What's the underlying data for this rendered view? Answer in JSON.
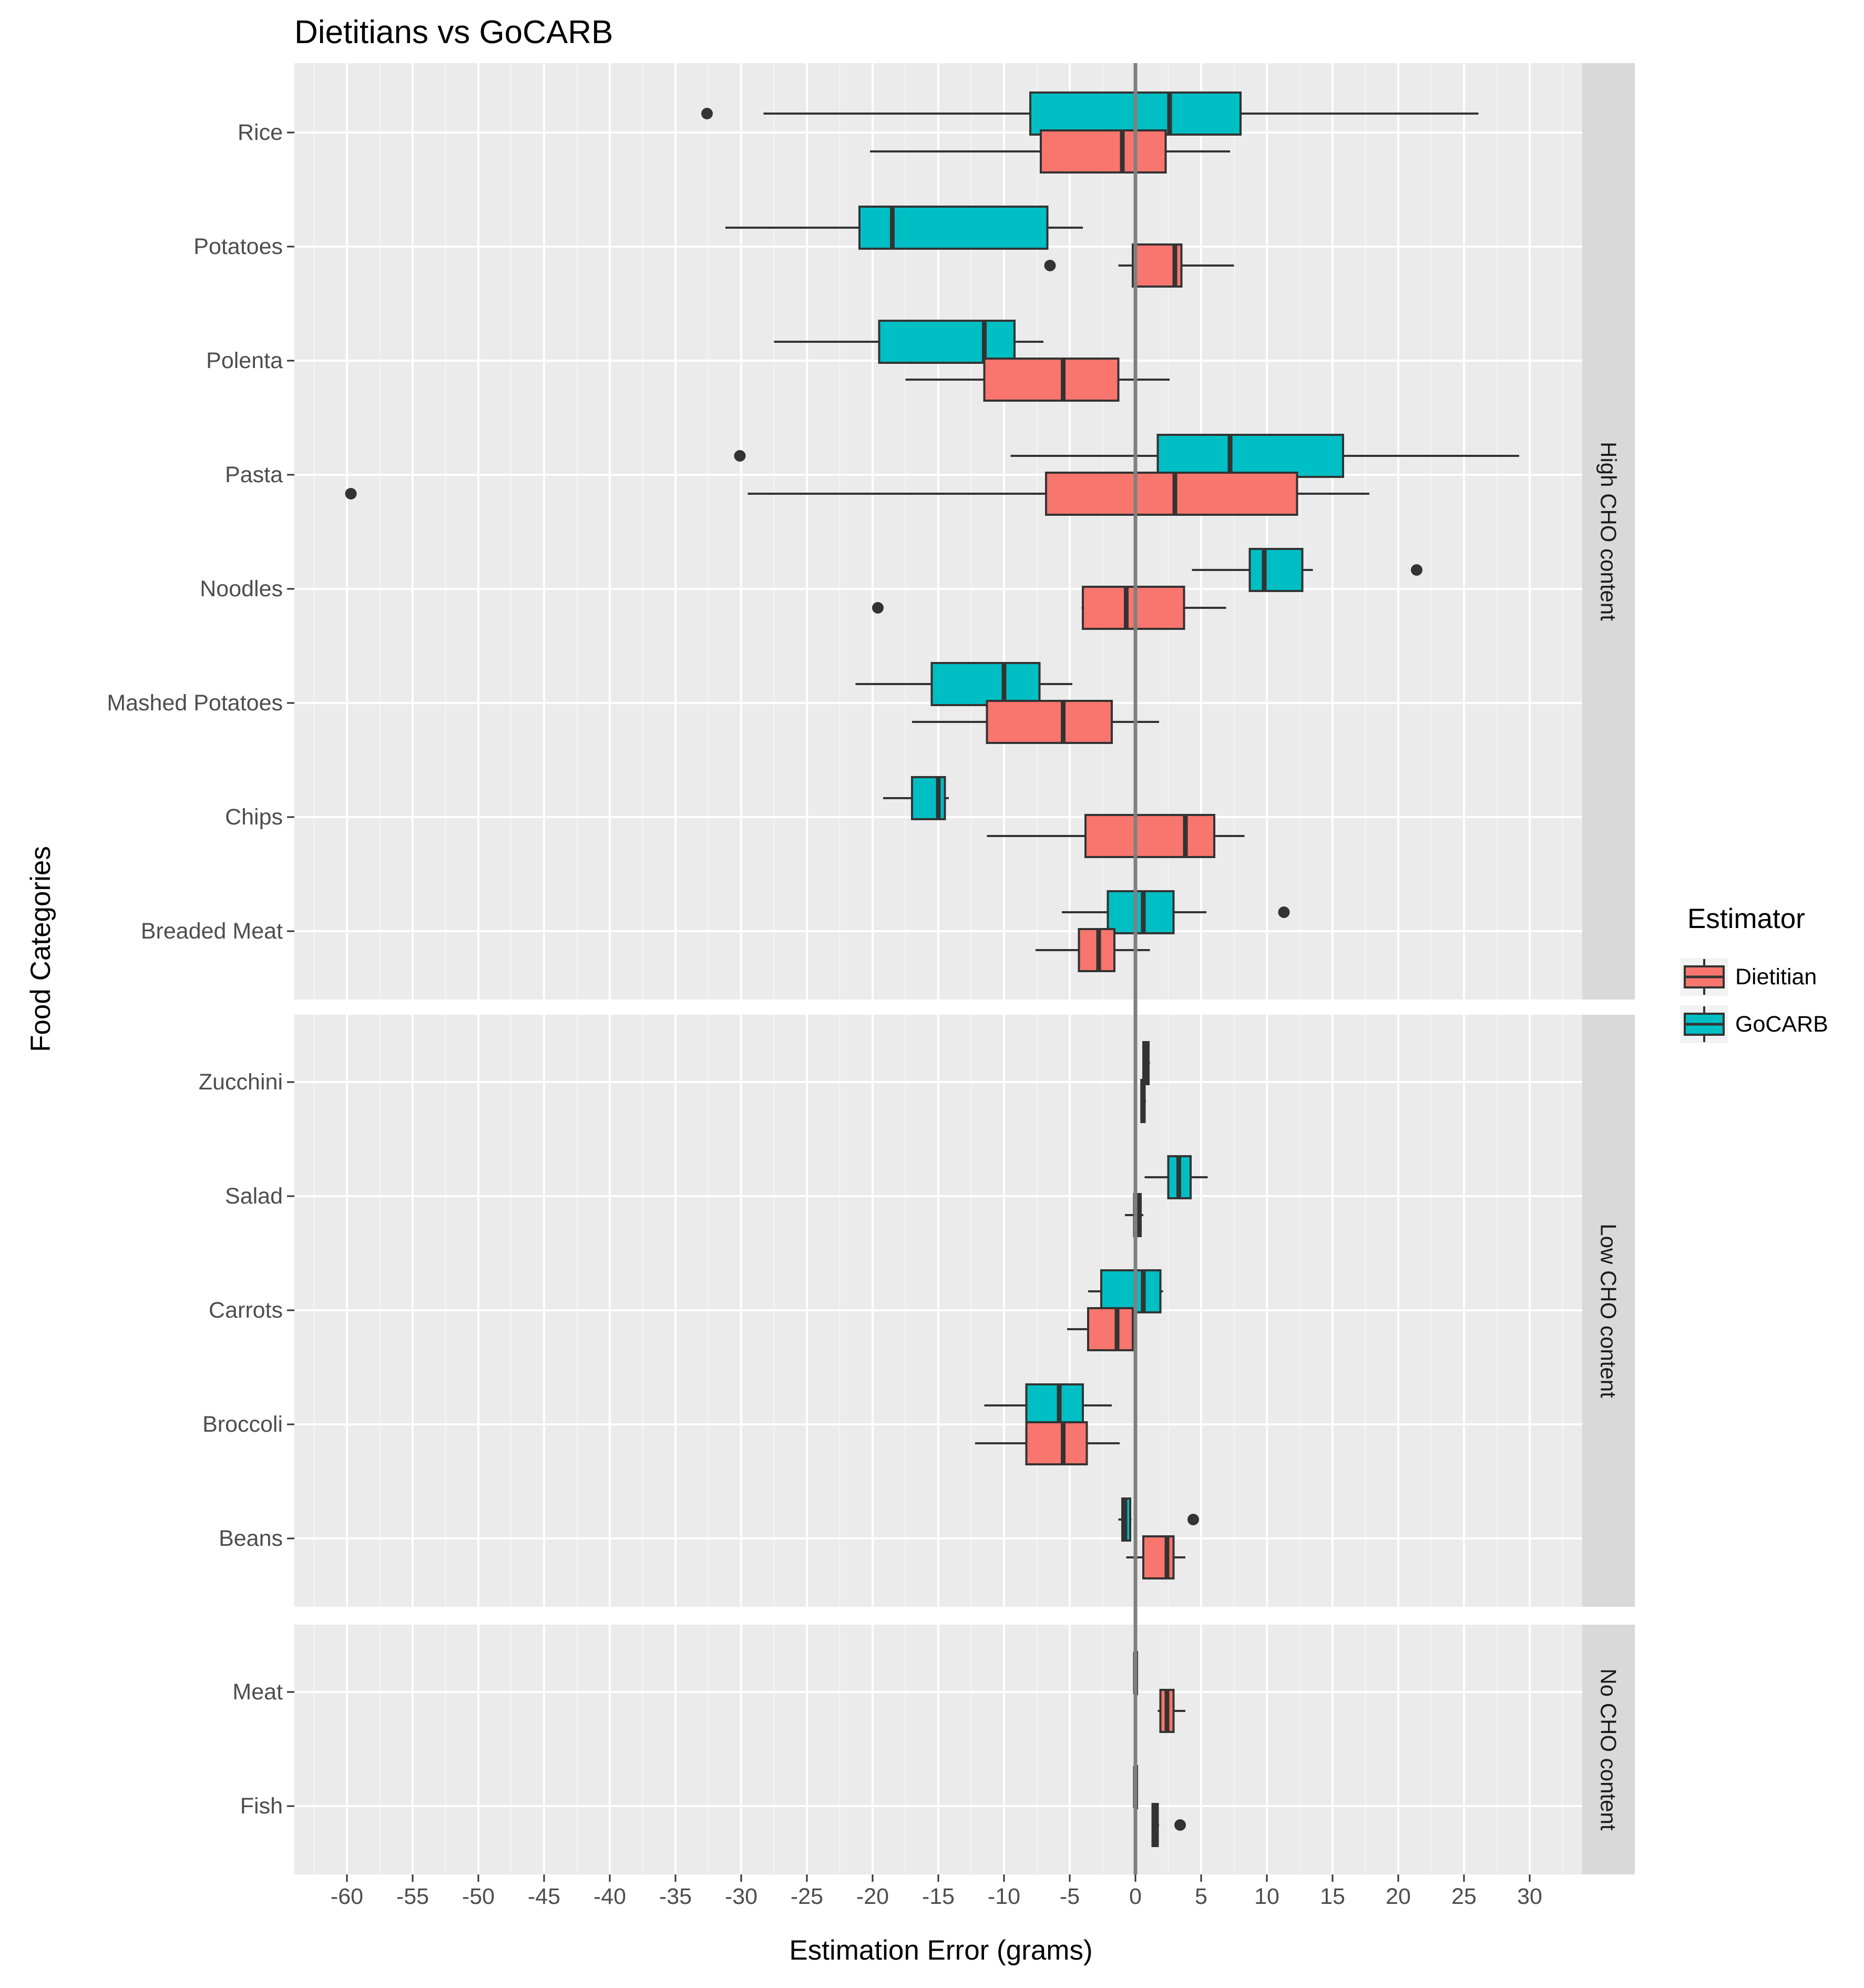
{
  "chart_data": {
    "type": "boxplot",
    "title": "Dietitians vs GoCARB",
    "xlabel": "Estimation Error (grams)",
    "ylabel": "Food Categories",
    "xlim": [
      -64,
      34
    ],
    "x_ticks": [
      -60,
      -55,
      -50,
      -45,
      -40,
      -35,
      -30,
      -25,
      -20,
      -15,
      -10,
      -5,
      0,
      5,
      10,
      15,
      20,
      25,
      30
    ],
    "reference_line_x": 0,
    "grid": true,
    "legend": {
      "title": "Estimator",
      "position": "right",
      "entries": [
        {
          "name": "Dietitian",
          "color": "#F8766D"
        },
        {
          "name": "GoCARB",
          "color": "#00BFC4"
        }
      ]
    },
    "colors": {
      "Dietitian": "#F8766D",
      "GoCARB": "#00BFC4",
      "panel": "#EBEBEB",
      "strip": "#D9D9D9"
    },
    "facets": [
      {
        "label": "High CHO content",
        "categories": [
          {
            "name": "Rice",
            "GoCARB": {
              "whisker_low": -28.3,
              "q1": -8,
              "median": 2.6,
              "q3": 8,
              "whisker_high": 26.1,
              "outliers": [
                -32.6
              ]
            },
            "Dietitian": {
              "whisker_low": -20.2,
              "q1": -7.2,
              "median": -1,
              "q3": 2.3,
              "whisker_high": 7.2,
              "outliers": []
            }
          },
          {
            "name": "Potatoes",
            "GoCARB": {
              "whisker_low": -31.2,
              "q1": -21,
              "median": -18.5,
              "q3": -6.7,
              "whisker_high": -4,
              "outliers": []
            },
            "Dietitian": {
              "whisker_low": -1.3,
              "q1": -0.2,
              "median": 3,
              "q3": 3.5,
              "whisker_high": 7.5,
              "outliers": [
                -6.5
              ]
            }
          },
          {
            "name": "Polenta",
            "GoCARB": {
              "whisker_low": -27.5,
              "q1": -19.5,
              "median": -11.5,
              "q3": -9.2,
              "whisker_high": -7,
              "outliers": []
            },
            "Dietitian": {
              "whisker_low": -17.5,
              "q1": -11.5,
              "median": -5.5,
              "q3": -1.3,
              "whisker_high": 2.6,
              "outliers": []
            }
          },
          {
            "name": "Pasta",
            "GoCARB": {
              "whisker_low": -9.5,
              "q1": 1.7,
              "median": 7.2,
              "q3": 15.8,
              "whisker_high": 29.2,
              "outliers": [
                -30.1
              ]
            },
            "Dietitian": {
              "whisker_low": -29.5,
              "q1": -6.8,
              "median": 3,
              "q3": 12.3,
              "whisker_high": 17.8,
              "outliers": [
                -59.7
              ]
            }
          },
          {
            "name": "Noodles",
            "GoCARB": {
              "whisker_low": 4.3,
              "q1": 8.7,
              "median": 9.8,
              "q3": 12.7,
              "whisker_high": 13.5,
              "outliers": [
                21.4
              ]
            },
            "Dietitian": {
              "whisker_low": -4.1,
              "q1": -4,
              "median": -0.7,
              "q3": 3.7,
              "whisker_high": 6.9,
              "outliers": [
                -19.6
              ]
            }
          },
          {
            "name": "Mashed Potatoes",
            "GoCARB": {
              "whisker_low": -21.3,
              "q1": -15.5,
              "median": -10,
              "q3": -7.3,
              "whisker_high": -4.8,
              "outliers": []
            },
            "Dietitian": {
              "whisker_low": -17,
              "q1": -11.3,
              "median": -5.5,
              "q3": -1.8,
              "whisker_high": 1.8,
              "outliers": []
            }
          },
          {
            "name": "Chips",
            "GoCARB": {
              "whisker_low": -19.2,
              "q1": -17,
              "median": -15,
              "q3": -14.5,
              "whisker_high": -14.2,
              "outliers": []
            },
            "Dietitian": {
              "whisker_low": -11.3,
              "q1": -3.8,
              "median": 3.8,
              "q3": 6,
              "whisker_high": 8.3,
              "outliers": []
            }
          },
          {
            "name": "Breaded Meat",
            "GoCARB": {
              "whisker_low": -5.6,
              "q1": -2.1,
              "median": 0.6,
              "q3": 2.9,
              "whisker_high": 5.4,
              "outliers": [
                11.3
              ]
            },
            "Dietitian": {
              "whisker_low": -7.6,
              "q1": -4.3,
              "median": -2.8,
              "q3": -1.6,
              "whisker_high": 1.1,
              "outliers": []
            }
          }
        ]
      },
      {
        "label": "Low CHO content",
        "categories": [
          {
            "name": "Zucchini",
            "GoCARB": {
              "whisker_low": 0.6,
              "q1": 0.6,
              "median": 0.8,
              "q3": 1,
              "whisker_high": 1.1,
              "outliers": []
            },
            "Dietitian": {
              "whisker_low": 0.4,
              "q1": 0.45,
              "median": 0.6,
              "q3": 0.7,
              "whisker_high": 0.8,
              "outliers": []
            }
          },
          {
            "name": "Salad",
            "GoCARB": {
              "whisker_low": 0.7,
              "q1": 2.5,
              "median": 3.3,
              "q3": 4.2,
              "whisker_high": 5.5,
              "outliers": []
            },
            "Dietitian": {
              "whisker_low": -0.8,
              "q1": -0.1,
              "median": 0.2,
              "q3": 0.4,
              "whisker_high": 0.6,
              "outliers": []
            }
          },
          {
            "name": "Carrots",
            "GoCARB": {
              "whisker_low": -3.6,
              "q1": -2.6,
              "median": 0.6,
              "q3": 1.9,
              "whisker_high": 2.1,
              "outliers": []
            },
            "Dietitian": {
              "whisker_low": -5.2,
              "q1": -3.6,
              "median": -1.4,
              "q3": -0.2,
              "whisker_high": 0.1,
              "outliers": []
            }
          },
          {
            "name": "Broccoli",
            "GoCARB": {
              "whisker_low": -11.5,
              "q1": -8.3,
              "median": -5.8,
              "q3": -4,
              "whisker_high": -1.8,
              "outliers": []
            },
            "Dietitian": {
              "whisker_low": -12.2,
              "q1": -8.3,
              "median": -5.5,
              "q3": -3.7,
              "whisker_high": -1.2,
              "outliers": []
            }
          },
          {
            "name": "Beans",
            "GoCARB": {
              "whisker_low": -1.3,
              "q1": -1,
              "median": -0.8,
              "q3": -0.4,
              "whisker_high": -0.3,
              "outliers": [
                4.4
              ]
            },
            "Dietitian": {
              "whisker_low": -0.7,
              "q1": 0.6,
              "median": 2.4,
              "q3": 2.9,
              "whisker_high": 3.8,
              "outliers": []
            }
          }
        ]
      },
      {
        "label": "No CHO content",
        "categories": [
          {
            "name": "Meat",
            "GoCARB": {
              "whisker_low": 0,
              "q1": 0,
              "median": 0,
              "q3": 0,
              "whisker_high": 0,
              "outliers": []
            },
            "Dietitian": {
              "whisker_low": 1.7,
              "q1": 1.9,
              "median": 2.4,
              "q3": 2.9,
              "whisker_high": 3.8,
              "outliers": []
            }
          },
          {
            "name": "Fish",
            "GoCARB": {
              "whisker_low": 0,
              "q1": 0,
              "median": 0,
              "q3": 0,
              "whisker_high": 0,
              "outliers": []
            },
            "Dietitian": {
              "whisker_low": 1.3,
              "q1": 1.3,
              "median": 1.5,
              "q3": 1.7,
              "whisker_high": 1.8,
              "outliers": [
                3.4
              ]
            }
          }
        ]
      }
    ]
  }
}
